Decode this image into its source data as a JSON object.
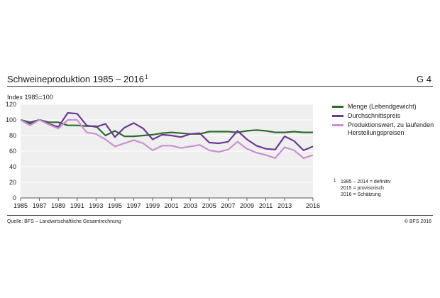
{
  "header": {
    "title": "Schweineproduktion 1985 – 2016",
    "title_footnote_mark": "1",
    "graphic_ref": "G 4"
  },
  "unit_label": "Index 1985=100",
  "legend": {
    "items": [
      {
        "label": "Menge (Lebendgewicht)",
        "color": "#2e6b2f"
      },
      {
        "label": "Durchschnittspreis",
        "color": "#6b3a93"
      },
      {
        "label": "Produktionswert, zu laufenden Herstellungspreisen",
        "color": "#c98fd0"
      }
    ]
  },
  "footnote": {
    "mark": "1",
    "lines": [
      "1985 – 2014 = definitiv",
      "2015 = provisorisch",
      "2016 = Schätzung"
    ]
  },
  "source": "Quelle: BFS – Landwirtschaftliche Gesamtrechnung",
  "copyright": "© BFS 2016",
  "chart_data": {
    "type": "line",
    "x": [
      1985,
      1986,
      1987,
      1988,
      1989,
      1990,
      1991,
      1992,
      1993,
      1994,
      1995,
      1996,
      1997,
      1998,
      1999,
      2000,
      2001,
      2002,
      2003,
      2004,
      2005,
      2006,
      2007,
      2008,
      2009,
      2010,
      2011,
      2012,
      2013,
      2014,
      2015,
      2016
    ],
    "x_tick_labels": [
      "1985",
      "1987",
      "1989",
      "1991",
      "1993",
      "1995",
      "1997",
      "1999",
      "2001",
      "2003",
      "2005",
      "2007",
      "2009",
      "2011",
      "2013",
      "2016"
    ],
    "x_ticks": [
      1985,
      1987,
      1989,
      1991,
      1993,
      1995,
      1997,
      1999,
      2001,
      2003,
      2005,
      2007,
      2009,
      2011,
      2013,
      2016
    ],
    "ylim": [
      0,
      120
    ],
    "y_ticks": [
      0,
      20,
      40,
      60,
      80,
      100,
      120
    ],
    "grid": true,
    "legend_position": "right",
    "series": [
      {
        "name": "Menge (Lebendgewicht)",
        "color": "#2e6b2f",
        "values": [
          100,
          97,
          100,
          97,
          97,
          93,
          93,
          92,
          92,
          80,
          86,
          79,
          79,
          80,
          81,
          83,
          84,
          83,
          82,
          82,
          85,
          85,
          85,
          84,
          86,
          87,
          86,
          84,
          84,
          85,
          84,
          84
        ]
      },
      {
        "name": "Durchschnittspreis",
        "color": "#6b3a93",
        "values": [
          100,
          95,
          100,
          95,
          91,
          109,
          108,
          93,
          91,
          95,
          78,
          90,
          96,
          89,
          75,
          81,
          80,
          78,
          82,
          83,
          71,
          70,
          72,
          86,
          75,
          67,
          63,
          62,
          79,
          73,
          61,
          66
        ]
      },
      {
        "name": "Produktionswert, zu laufenden Herstellungspreisen",
        "color": "#c98fd0",
        "values": [
          100,
          93,
          100,
          94,
          89,
          100,
          100,
          84,
          82,
          75,
          66,
          70,
          74,
          70,
          61,
          67,
          67,
          64,
          66,
          68,
          61,
          59,
          62,
          72,
          63,
          58,
          55,
          51,
          65,
          61,
          51,
          55
        ]
      }
    ]
  }
}
